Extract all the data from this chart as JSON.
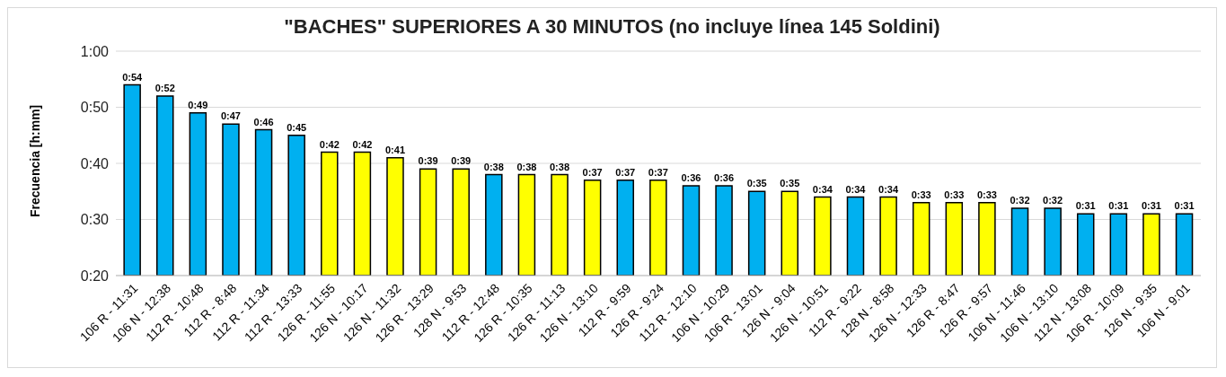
{
  "chart_data": {
    "type": "bar",
    "title": "\"BACHES\" SUPERIORES A 30 MINUTOS (no incluye línea 145 Soldini)",
    "ylabel": "Frecuencia [h:mm]",
    "categories": [
      "106 R - 11:31",
      "106 N - 12:38",
      "112 R - 10:48",
      "112 R - 8:48",
      "112 R - 11:34",
      "112 R - 13:33",
      "126 R - 11:55",
      "126 N - 10:17",
      "126 N - 11:32",
      "126 R - 13:29",
      "128 N - 9:53",
      "112 R - 12:48",
      "126 R - 10:35",
      "126 R - 11:13",
      "126 N - 13:10",
      "112 R - 9:59",
      "126 R - 9:24",
      "112 R - 12:10",
      "106 N - 10:29",
      "106 R - 13:01",
      "126 N - 9:04",
      "126 N - 10:51",
      "112 R - 9:22",
      "128 N - 8:58",
      "126 N - 12:33",
      "126 R - 8:47",
      "126 R - 9:57",
      "106 N - 11:46",
      "106 N - 13:10",
      "112 N - 13:08",
      "106 R - 10:09",
      "126 N - 9:35",
      "106 N - 9:01"
    ],
    "values": [
      54,
      52,
      49,
      47,
      46,
      45,
      42,
      42,
      41,
      39,
      39,
      38,
      38,
      38,
      37,
      37,
      37,
      36,
      36,
      35,
      35,
      34,
      34,
      34,
      33,
      33,
      33,
      32,
      32,
      31,
      31,
      31,
      31
    ],
    "value_labels": [
      "0:54",
      "0:52",
      "0:49",
      "0:47",
      "0:46",
      "0:45",
      "0:42",
      "0:42",
      "0:41",
      "0:39",
      "0:39",
      "0:38",
      "0:38",
      "0:38",
      "0:37",
      "0:37",
      "0:37",
      "0:36",
      "0:36",
      "0:35",
      "0:35",
      "0:34",
      "0:34",
      "0:34",
      "0:33",
      "0:33",
      "0:33",
      "0:32",
      "0:32",
      "0:31",
      "0:31",
      "0:31",
      "0:31"
    ],
    "colors": [
      "#00b0f0",
      "#00b0f0",
      "#00b0f0",
      "#00b0f0",
      "#00b0f0",
      "#00b0f0",
      "#ffff00",
      "#ffff00",
      "#ffff00",
      "#ffff00",
      "#ffff00",
      "#00b0f0",
      "#ffff00",
      "#ffff00",
      "#ffff00",
      "#00b0f0",
      "#ffff00",
      "#00b0f0",
      "#00b0f0",
      "#00b0f0",
      "#ffff00",
      "#ffff00",
      "#00b0f0",
      "#ffff00",
      "#ffff00",
      "#ffff00",
      "#ffff00",
      "#00b0f0",
      "#00b0f0",
      "#00b0f0",
      "#00b0f0",
      "#ffff00",
      "#00b0f0"
    ],
    "ylim": [
      20,
      60
    ],
    "yticks": [
      {
        "value": 20,
        "label": "0:20"
      },
      {
        "value": 30,
        "label": "0:30"
      },
      {
        "value": 40,
        "label": "0:40"
      },
      {
        "value": 50,
        "label": "0:50"
      },
      {
        "value": 60,
        "label": "1:00"
      }
    ],
    "grid": "y"
  }
}
